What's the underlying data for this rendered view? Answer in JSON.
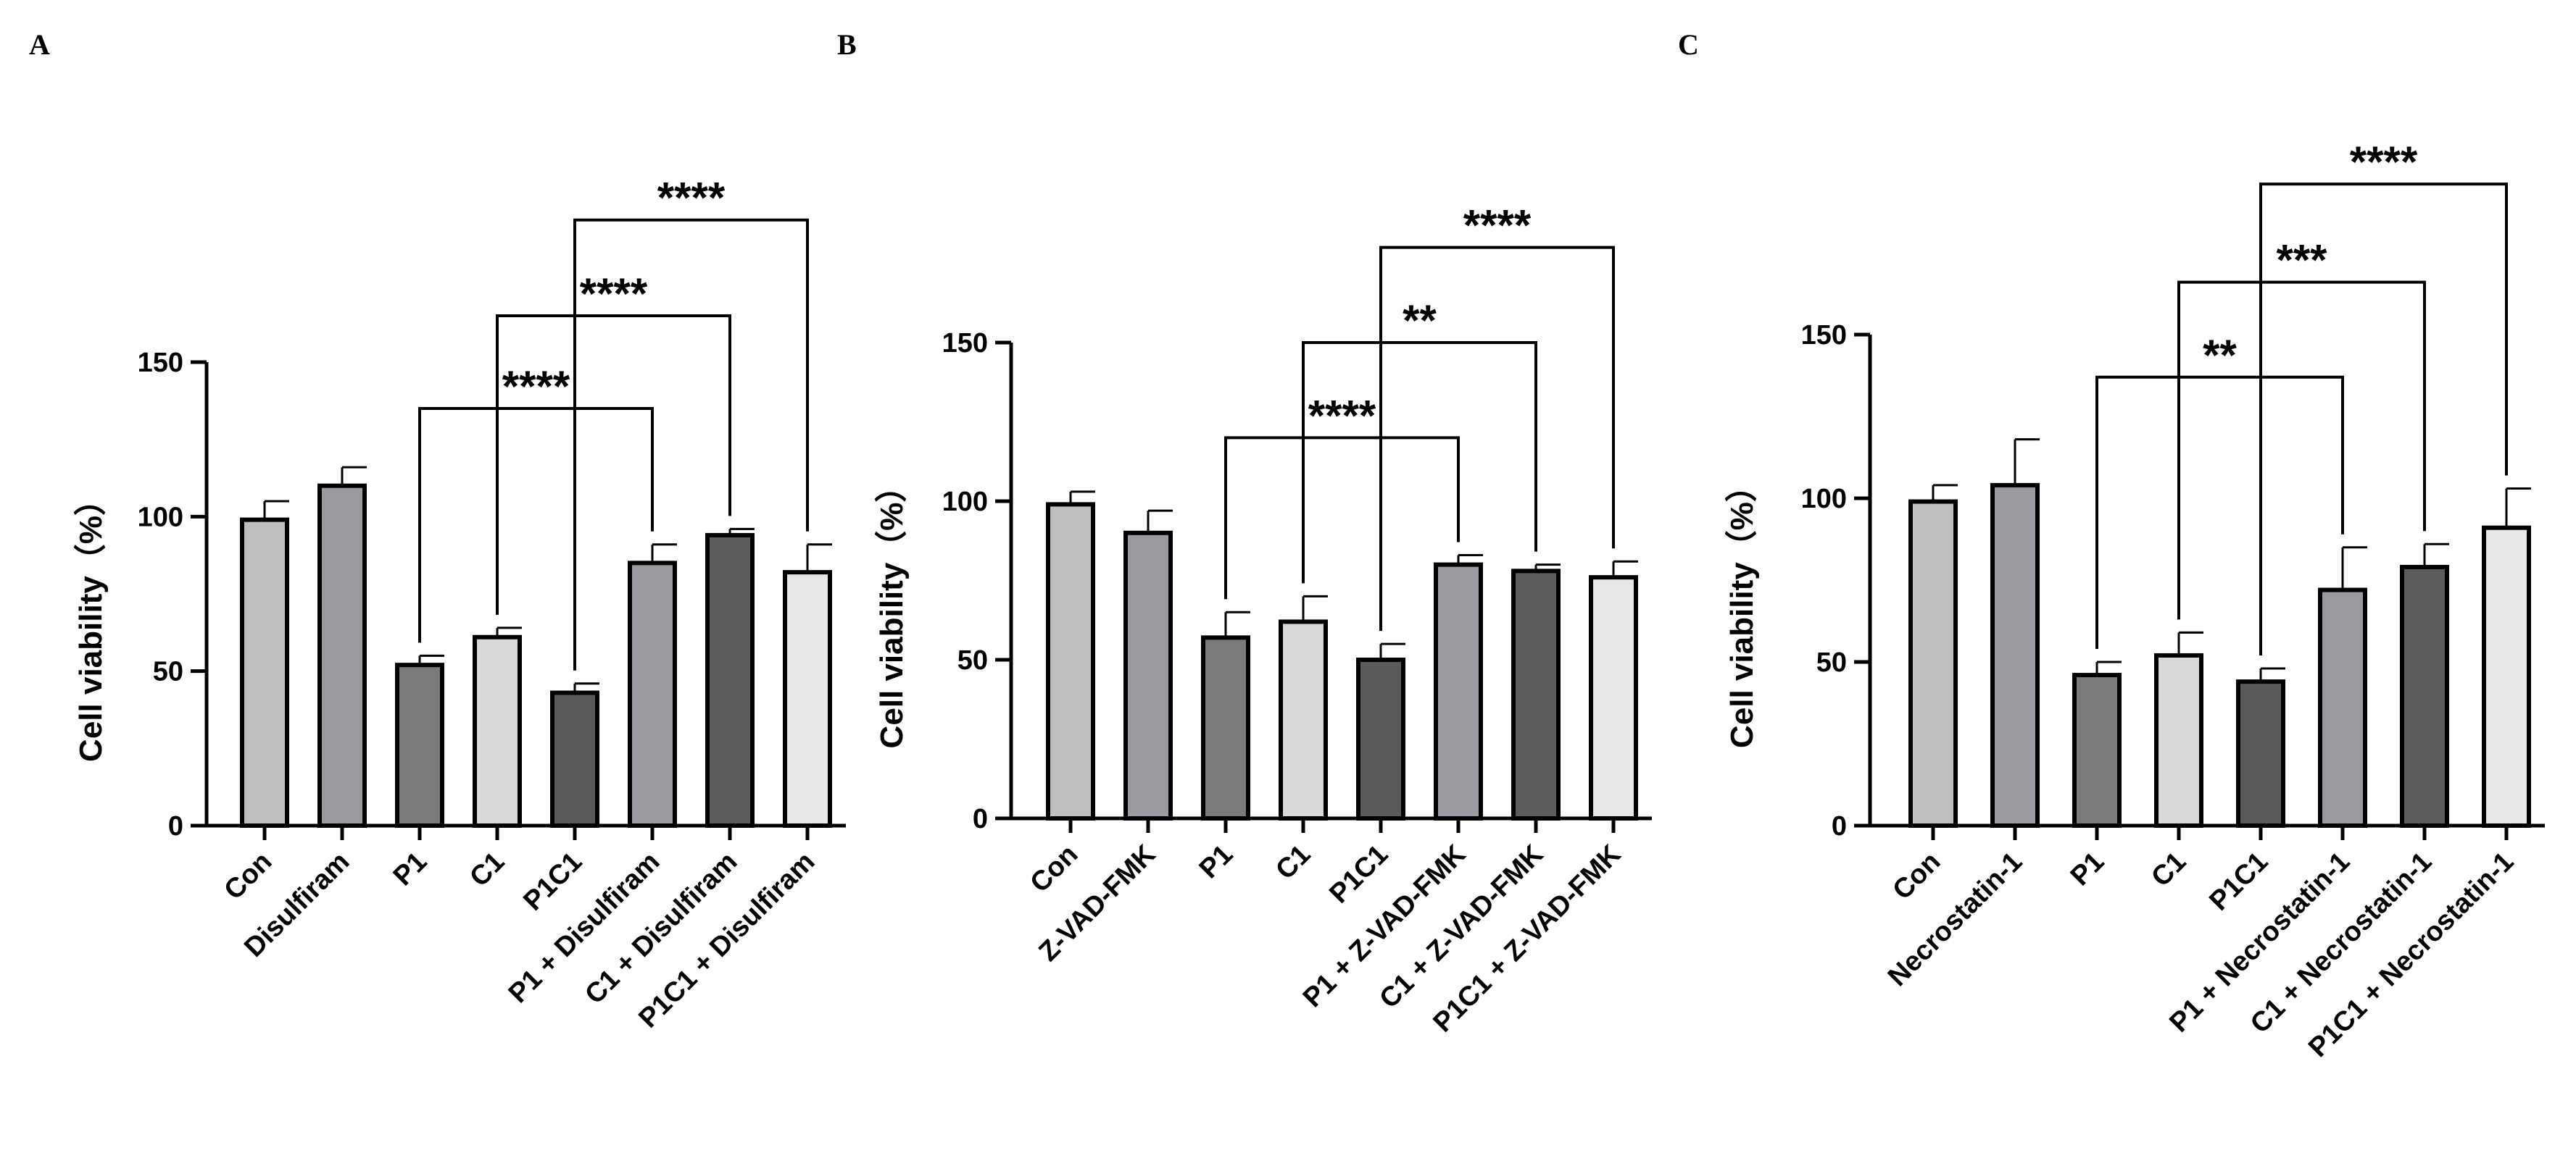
{
  "chart_data": [
    {
      "panel": "A",
      "type": "bar",
      "title": "",
      "xlabel": "",
      "ylabel": "Cell viability（%）",
      "ylim": [
        0,
        150
      ],
      "yticks": [
        0,
        50,
        100,
        150
      ],
      "categories": [
        "Con",
        "Disulfiram",
        "P1",
        "C1",
        "P1C1",
        "P1 + Disulfiram",
        "C1 + Disulfiram",
        "P1C1 + Disulfiram"
      ],
      "values": [
        99,
        110,
        52,
        61,
        43,
        85,
        94,
        82
      ],
      "errors": [
        6,
        6,
        3,
        3,
        3,
        6,
        2,
        9
      ],
      "colors": [
        "#bfbfbf",
        "#9a9aa1",
        "#7b7b7b",
        "#d9d9d9",
        "#5a5a5a",
        "#9a9aa1",
        "#5c5c5c",
        "#e8e8e8"
      ],
      "significance": [
        {
          "from": 2,
          "to": 5,
          "label": "****",
          "y": 135
        },
        {
          "from": 3,
          "to": 6,
          "label": "****",
          "y": 165
        },
        {
          "from": 4,
          "to": 7,
          "label": "****",
          "y": 196
        }
      ]
    },
    {
      "panel": "B",
      "type": "bar",
      "title": "",
      "xlabel": "",
      "ylabel": "Cell viability（%）",
      "ylim": [
        0,
        150
      ],
      "yticks": [
        0,
        50,
        100,
        150
      ],
      "categories": [
        "Con",
        "Z-VAD-FMK",
        "P1",
        "C1",
        "P1C1",
        "P1 + Z-VAD-FMK",
        "C1 + Z-VAD-FMK",
        "P1C1 + Z-VAD-FMK"
      ],
      "values": [
        99,
        90,
        57,
        62,
        50,
        80,
        78,
        76
      ],
      "errors": [
        4,
        7,
        8,
        8,
        5,
        3,
        2,
        5
      ],
      "colors": [
        "#bfbfbf",
        "#9a9aa1",
        "#7b7b7b",
        "#d9d9d9",
        "#5a5a5a",
        "#9a9aa1",
        "#5c5c5c",
        "#e8e8e8"
      ],
      "significance": [
        {
          "from": 2,
          "to": 5,
          "label": "****",
          "y": 120
        },
        {
          "from": 3,
          "to": 6,
          "label": "**",
          "y": 150
        },
        {
          "from": 4,
          "to": 7,
          "label": "****",
          "y": 180
        }
      ]
    },
    {
      "panel": "C",
      "type": "bar",
      "title": "",
      "xlabel": "",
      "ylabel": "Cell viability（%）",
      "ylim": [
        0,
        150
      ],
      "yticks": [
        0,
        50,
        100,
        150
      ],
      "categories": [
        "Con",
        "Necrostatin-1",
        "P1",
        "C1",
        "P1C1",
        "P1 + Necrostatin-1",
        "C1 + Necrostatin-1",
        "P1C1 + Necrostatin-1"
      ],
      "values": [
        99,
        104,
        46,
        52,
        44,
        72,
        79,
        91
      ],
      "errors": [
        5,
        14,
        4,
        7,
        4,
        13,
        7,
        12
      ],
      "colors": [
        "#bfbfbf",
        "#9a9aa1",
        "#7b7b7b",
        "#d9d9d9",
        "#5a5a5a",
        "#9a9aa1",
        "#5c5c5c",
        "#e8e8e8"
      ],
      "significance": [
        {
          "from": 2,
          "to": 5,
          "label": "**",
          "y": 137
        },
        {
          "from": 3,
          "to": 6,
          "label": "***",
          "y": 166
        },
        {
          "from": 4,
          "to": 7,
          "label": "****",
          "y": 196
        }
      ]
    }
  ]
}
